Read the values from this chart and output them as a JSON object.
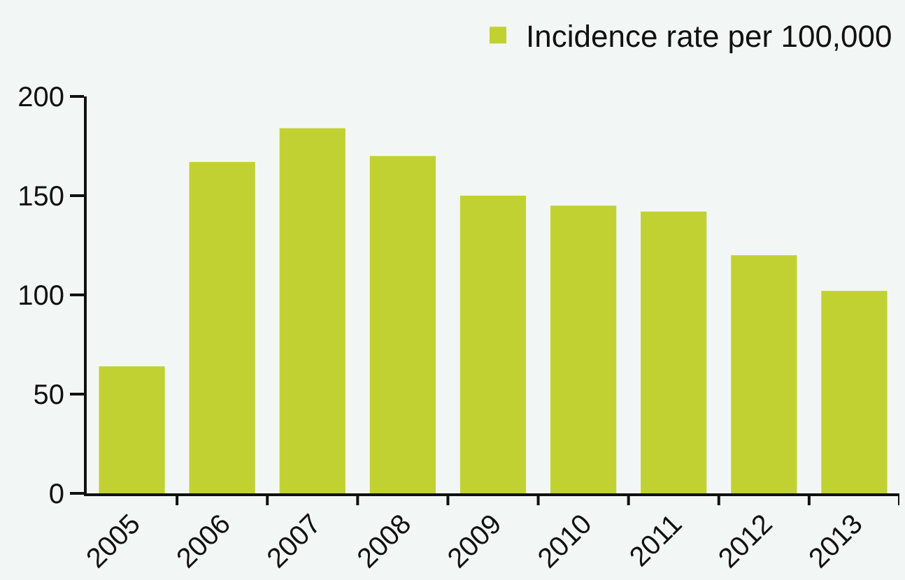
{
  "chart_data": {
    "type": "bar",
    "categories": [
      "2005",
      "2006",
      "2007",
      "2008",
      "2009",
      "2010",
      "2011",
      "2012",
      "2013"
    ],
    "series": [
      {
        "name": "Incidence rate per 100,000",
        "color": "#c2d132",
        "values": [
          64,
          167,
          184,
          170,
          150,
          145,
          142,
          120,
          102
        ]
      }
    ],
    "ylim": [
      0,
      200
    ],
    "yticks": [
      0,
      50,
      100,
      150,
      200
    ],
    "grid": false,
    "legend": "top right"
  }
}
